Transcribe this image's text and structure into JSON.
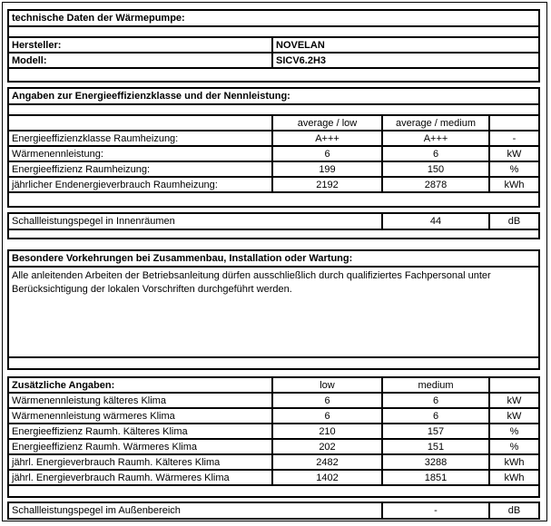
{
  "doc": {
    "header": "technische Daten der Wärmepumpe:",
    "manufacturer_label": "Hersteller:",
    "manufacturer_value": "NOVELAN",
    "model_label": "Modell:",
    "model_value": "SICV6.2H3",
    "energy": {
      "title": "Angaben zur Energieeffizienzklasse und der Nennleistung:",
      "col1_header": "average / low",
      "col2_header": "average / medium",
      "rows": [
        {
          "label": "Energieeffizienzklasse Raumheizung:",
          "v1": "A+++",
          "v2": "A+++",
          "unit": "-"
        },
        {
          "label": "Wärmenennleistung:",
          "v1": "6",
          "v2": "6",
          "unit": "kW"
        },
        {
          "label": "Energieeffizienz Raumheizung:",
          "v1": "199",
          "v2": "150",
          "unit": "%"
        },
        {
          "label": "jährlicher Endenergieverbrauch Raumheizung:",
          "v1": "2192",
          "v2": "2878",
          "unit": "kWh"
        }
      ]
    },
    "sound_indoor": {
      "label": "Schallleistungspegel in Innenräumen",
      "value": "44",
      "unit": "dB"
    },
    "maintenance": {
      "title": "Besondere Vorkehrungen bei Zusammenbau, Installation oder Wartung:",
      "text": "Alle anleitenden Arbeiten der Betriebsanleitung dürfen ausschließlich durch qualifiziertes Fachpersonal unter Berücksichtigung der lokalen Vorschriften durchgeführt werden."
    },
    "additional": {
      "title": "Zusätzliche Angaben:",
      "col1_header": "low",
      "col2_header": "medium",
      "rows": [
        {
          "label": "Wärmenennleistung kälteres Klima",
          "v1": "6",
          "v2": "6",
          "unit": "kW"
        },
        {
          "label": "Wärmenennleistung wärmeres Klima",
          "v1": "6",
          "v2": "6",
          "unit": "kW"
        },
        {
          "label": "Energieeffizienz Raumh. Kälteres Klima",
          "v1": "210",
          "v2": "157",
          "unit": "%"
        },
        {
          "label": "Energieeffizienz Raumh. Wärmeres Klima",
          "v1": "202",
          "v2": "151",
          "unit": "%"
        },
        {
          "label": "jährl. Energieverbrauch Raumh. Kälteres Klima",
          "v1": "2482",
          "v2": "3288",
          "unit": "kWh"
        },
        {
          "label": "jährl. Energieverbrauch Raumh. Wärmeres Klima",
          "v1": "1402",
          "v2": "1851",
          "unit": "kWh"
        }
      ]
    },
    "sound_outdoor": {
      "label": "Schallleistungspegel im Außenbereich",
      "value": "-",
      "unit": "dB"
    },
    "colors": {
      "border": "#000000",
      "background": "#ffffff",
      "text": "#000000"
    }
  }
}
